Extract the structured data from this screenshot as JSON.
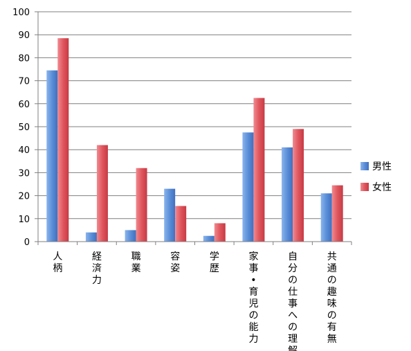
{
  "chart_data": {
    "type": "bar",
    "categories": [
      "人柄",
      "経済力",
      "職業",
      "容姿",
      "学歴",
      "家事・育児の能力",
      "自分の仕事への理解",
      "共通の趣味の有無"
    ],
    "series": [
      {
        "name": "男性",
        "values": [
          74.5,
          4,
          5,
          23,
          2.5,
          47.5,
          41,
          21
        ],
        "color": "#5b8fd8"
      },
      {
        "name": "女性",
        "values": [
          88.5,
          42,
          32,
          15.5,
          8,
          62.5,
          49,
          24.5
        ],
        "color": "#e0565e"
      }
    ],
    "ylim": [
      0,
      100
    ],
    "yticks": [
      "0",
      "10",
      "20",
      "30",
      "40",
      "50",
      "60",
      "70",
      "80",
      "90",
      "100"
    ],
    "grid": true,
    "legend": "right"
  }
}
